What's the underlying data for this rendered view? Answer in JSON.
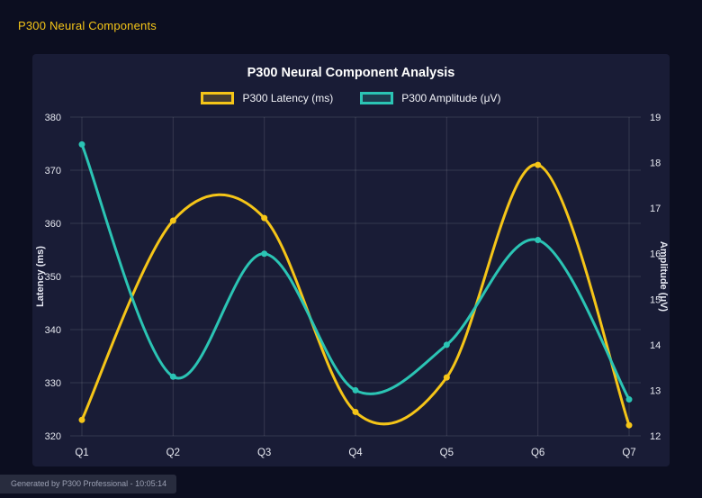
{
  "page": {
    "title": "P300 Neural Components",
    "footer": "Generated by P300 Professional - 10:05:14"
  },
  "chart_data": {
    "type": "line",
    "title": "P300 Neural Component Analysis",
    "categories": [
      "Q1",
      "Q2",
      "Q3",
      "Q4",
      "Q5",
      "Q6",
      "Q7"
    ],
    "series": [
      {
        "name": "P300 Latency (ms)",
        "yAxis": "left",
        "color": "#f5c518",
        "values": [
          323,
          360.5,
          361,
          324.5,
          331,
          371,
          322
        ]
      },
      {
        "name": "P300 Amplitude (μV)",
        "yAxis": "right",
        "color": "#2bc4b4",
        "values": [
          18.4,
          13.3,
          16.0,
          13.0,
          14.0,
          16.3,
          12.8
        ]
      }
    ],
    "axes": {
      "left": {
        "label": "Latency (ms)",
        "min": 320,
        "max": 380,
        "step": 10
      },
      "right": {
        "label": "Amplitude (μV)",
        "min": 12,
        "max": 19,
        "step": 1
      }
    },
    "grid": true,
    "legend_position": "top",
    "line_style": "smooth"
  },
  "colors": {
    "background": "#0c0e20",
    "panel": "#191c36",
    "grid": "rgba(255,255,255,0.12)",
    "tick_text": "#e6e8f0",
    "axis_title_text": "#e8eaf4",
    "title_text": "#ffffff",
    "accent_yellow": "#f5c518",
    "accent_teal": "#2bc4b4"
  }
}
